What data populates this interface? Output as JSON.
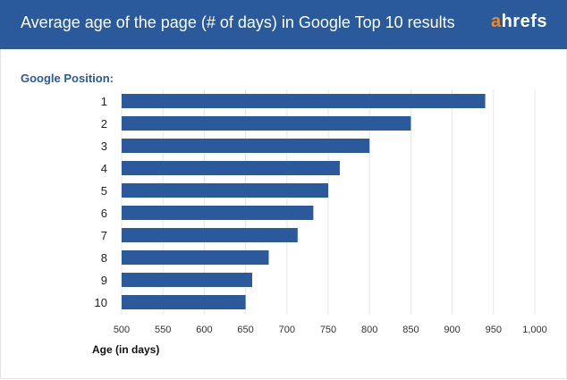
{
  "header": {
    "title": "Average age of the page (# of days) in Google Top 10 results",
    "logo_text": "ahrefs",
    "logo_accent": "a",
    "logo_rest": "hrefs"
  },
  "colors": {
    "header": "#2a5a9b",
    "bar": "#2a5a9b",
    "logo_accent": "#f08a24"
  },
  "chart_data": {
    "type": "bar",
    "orientation": "horizontal",
    "title": "Average age of the page (# of days) in Google Top 10 results",
    "ylabel": "Google Position:",
    "xlabel": "Age (in days)",
    "categories": [
      "1",
      "2",
      "3",
      "4",
      "5",
      "6",
      "7",
      "8",
      "9",
      "10"
    ],
    "values": [
      940,
      850,
      800,
      764,
      750,
      732,
      713,
      678,
      658,
      650
    ],
    "xlim": [
      500,
      1000
    ],
    "xticks": [
      "500",
      "550",
      "600",
      "650",
      "700",
      "750",
      "800",
      "850",
      "900",
      "950",
      "1,000"
    ],
    "grid": "vertical"
  }
}
